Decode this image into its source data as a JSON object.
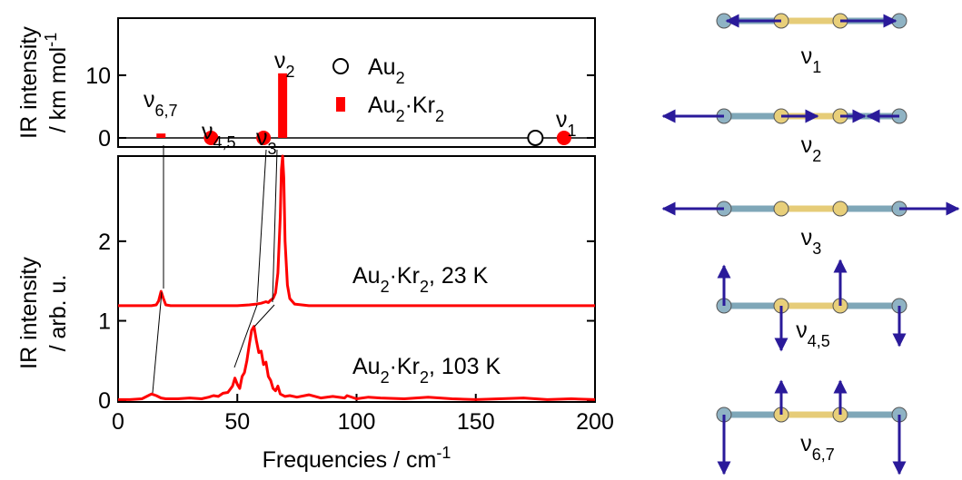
{
  "chart_data": [
    {
      "type": "stick",
      "xlim": [
        0,
        200
      ],
      "ylim": [
        -1.45,
        19.1
      ],
      "yticks": [
        0,
        10
      ],
      "ylabel": [
        [
          "IR intensity"
        ],
        [
          "/ km mol",
          "-1"
        ]
      ],
      "zero_line": true,
      "legend": "upper center",
      "series": [
        {
          "name": [
            "Au",
            "2"
          ],
          "marker": "open-circle",
          "color": "#000000",
          "x": [
            175
          ],
          "values": [
            0
          ]
        },
        {
          "name": [
            "Au",
            "2",
            "·Kr",
            "2"
          ],
          "marker": "bar",
          "color": "#ff0000",
          "x": [
            18,
            69
          ],
          "values": [
            0.7,
            10.3
          ],
          "zero_modes": {
            "x": [
              39,
              61,
              187
            ],
            "values": [
              0,
              0,
              0
            ]
          }
        }
      ],
      "mode_labels": [
        [
          "ν",
          "6,7"
        ],
        [
          "ν",
          "4,5"
        ],
        [
          "ν",
          "3"
        ],
        [
          "ν",
          "2"
        ],
        [
          "ν",
          "1"
        ]
      ]
    },
    {
      "type": "line",
      "xlim": [
        0,
        200
      ],
      "xticks": [
        0,
        50,
        100,
        150,
        200
      ],
      "xlabel": [
        "Frequencies / cm",
        "-1"
      ],
      "ylim": [
        -0.02,
        3.07
      ],
      "yticks": [
        0,
        1,
        2
      ],
      "ylabel": [
        [
          "IR intensity"
        ],
        [
          "/ arb. u."
        ]
      ],
      "series": [
        {
          "name": [
            "Au",
            "2",
            "·Kr",
            "2",
            ", 23 K"
          ],
          "color": "#ff0000",
          "x": [
            0,
            10,
            14,
            16,
            17,
            18,
            19,
            20,
            22,
            30,
            40,
            50,
            55,
            58,
            60,
            62,
            63,
            64,
            65,
            66,
            67,
            68,
            68.5,
            69,
            69.5,
            70,
            71,
            72,
            74,
            80,
            100,
            150,
            200
          ],
          "values": [
            1.19,
            1.19,
            1.19,
            1.2,
            1.25,
            1.37,
            1.28,
            1.2,
            1.19,
            1.19,
            1.19,
            1.19,
            1.2,
            1.21,
            1.22,
            1.24,
            1.23,
            1.26,
            1.28,
            1.35,
            1.6,
            2.3,
            2.9,
            3.07,
            2.8,
            2.0,
            1.45,
            1.28,
            1.21,
            1.19,
            1.19,
            1.19,
            1.19
          ]
        },
        {
          "name": [
            "Au",
            "2",
            "·Kr",
            "2",
            ", 103 K"
          ],
          "color": "#ff0000",
          "x": [
            0,
            5,
            10,
            12,
            14,
            16,
            18,
            20,
            25,
            30,
            35,
            38,
            40,
            42,
            44,
            46,
            48,
            49,
            50,
            51,
            52,
            53,
            54,
            55,
            56,
            57,
            58,
            59,
            60,
            61,
            62,
            63,
            64,
            65,
            66,
            67,
            68,
            70,
            72,
            75,
            80,
            85,
            90,
            95,
            96,
            100,
            105,
            110,
            120,
            130,
            140,
            150,
            160,
            170,
            180,
            190,
            200
          ],
          "values": [
            0.01,
            0.01,
            0.02,
            0.05,
            0.08,
            0.06,
            0.03,
            0.02,
            0.02,
            0.03,
            0.02,
            0.04,
            0.06,
            0.05,
            0.09,
            0.1,
            0.18,
            0.28,
            0.2,
            0.15,
            0.3,
            0.35,
            0.5,
            0.7,
            0.88,
            0.93,
            0.75,
            0.6,
            0.62,
            0.45,
            0.48,
            0.3,
            0.25,
            0.15,
            0.12,
            0.18,
            0.08,
            0.05,
            0.06,
            0.04,
            0.07,
            0.03,
            0.05,
            0.03,
            0.06,
            0.02,
            0.04,
            0.03,
            0.02,
            0.04,
            0.02,
            0.01,
            0.02,
            0.03,
            0.01,
            0.02,
            0.01
          ]
        }
      ]
    }
  ],
  "diagram": {
    "labels": [
      [
        "ν",
        "1"
      ],
      [
        "ν",
        "2"
      ],
      [
        "ν",
        "3"
      ],
      [
        "ν",
        "4,5"
      ],
      [
        "ν",
        "6,7"
      ]
    ]
  }
}
